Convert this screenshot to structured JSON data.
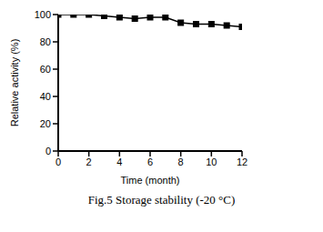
{
  "chart_data": {
    "type": "line",
    "title": "Fig.5 Storage stability (-20 °C)",
    "x_label": "Time (month)",
    "y_label": "Relative activity (%)",
    "x": [
      0,
      1,
      2,
      3,
      4,
      5,
      6,
      7,
      8,
      9,
      10,
      11,
      12
    ],
    "values": [
      100,
      100,
      100,
      99,
      98,
      97,
      98,
      98,
      94,
      93,
      93,
      92,
      91
    ],
    "color": "#000000",
    "marker": "square",
    "line_style": "solid",
    "xlim": [
      0,
      12
    ],
    "xticks": [
      0,
      2,
      4,
      6,
      8,
      10,
      12
    ],
    "ylim": [
      0,
      100
    ],
    "yticks": [
      0,
      20,
      40,
      60,
      80,
      100
    ],
    "grid": false
  }
}
